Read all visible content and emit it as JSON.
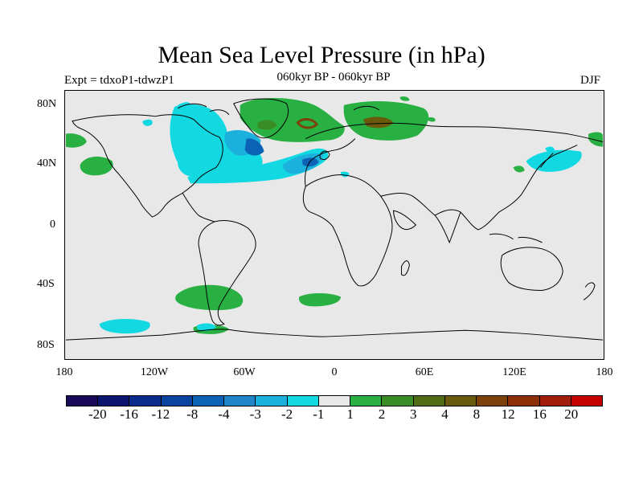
{
  "title": "Mean Sea Level Pressure (in hPa)",
  "experiment": "Expt = tdxoP1-tdwzP1",
  "subtitle": "060kyr BP - 060kyr BP",
  "season": "DJF",
  "map": {
    "background_color": "#e8e8e8",
    "lat_ticks": [
      "80N",
      "40N",
      "0",
      "40S",
      "80S"
    ],
    "lon_ticks": [
      "180",
      "120W",
      "60W",
      "0",
      "60E",
      "120E",
      "180"
    ]
  },
  "colorbar": {
    "colors": [
      "#1a0a5a",
      "#0c166e",
      "#0a2a8c",
      "#0a43a0",
      "#0c62b4",
      "#1e86c8",
      "#1cb0dc",
      "#12d8e2",
      "#e8e8e8",
      "#28b043",
      "#3a8c24",
      "#506c14",
      "#6a5a0c",
      "#7c420a",
      "#8c2e08",
      "#a01e0a",
      "#c40000"
    ],
    "labels": [
      "-20",
      "-16",
      "-12",
      "-8",
      "-4",
      "-3",
      "-2",
      "-1",
      "1",
      "2",
      "3",
      "4",
      "8",
      "12",
      "16",
      "20"
    ]
  }
}
